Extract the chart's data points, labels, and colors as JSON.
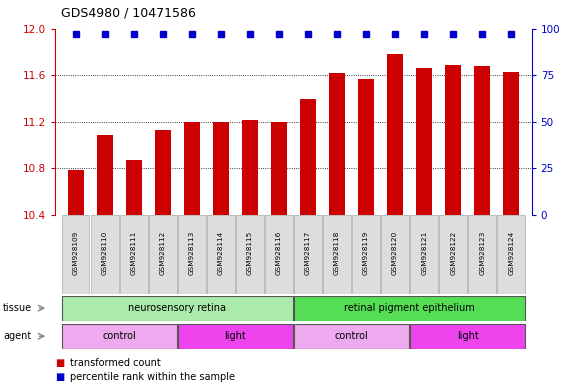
{
  "title": "GDS4980 / 10471586",
  "samples": [
    "GSM928109",
    "GSM928110",
    "GSM928111",
    "GSM928112",
    "GSM928113",
    "GSM928114",
    "GSM928115",
    "GSM928116",
    "GSM928117",
    "GSM928118",
    "GSM928119",
    "GSM928120",
    "GSM928121",
    "GSM928122",
    "GSM928123",
    "GSM928124"
  ],
  "bar_values": [
    10.79,
    11.09,
    10.87,
    11.13,
    11.2,
    11.2,
    11.22,
    11.2,
    11.4,
    11.62,
    11.57,
    11.78,
    11.66,
    11.69,
    11.68,
    11.63
  ],
  "percentile_values": [
    97,
    97,
    97,
    97,
    97,
    97,
    97,
    97,
    97,
    97,
    97,
    97,
    97,
    97,
    97,
    97
  ],
  "bar_color": "#cc0000",
  "percentile_color": "#0000cc",
  "ylim_left": [
    10.4,
    12.0
  ],
  "ylim_right": [
    0,
    100
  ],
  "yticks_left": [
    10.4,
    10.8,
    11.2,
    11.6,
    12.0
  ],
  "yticks_right": [
    0,
    25,
    50,
    75,
    100
  ],
  "tissue_groups": [
    {
      "label": "neurosensory retina",
      "start": 0,
      "end": 7,
      "color": "#aaeaaa"
    },
    {
      "label": "retinal pigment epithelium",
      "start": 8,
      "end": 15,
      "color": "#55dd55"
    }
  ],
  "agent_groups": [
    {
      "label": "control",
      "start": 0,
      "end": 3,
      "color": "#eeaaee"
    },
    {
      "label": "light",
      "start": 4,
      "end": 7,
      "color": "#ee44ee"
    },
    {
      "label": "control",
      "start": 8,
      "end": 11,
      "color": "#eeaaee"
    },
    {
      "label": "light",
      "start": 12,
      "end": 15,
      "color": "#ee44ee"
    }
  ],
  "background_color": "#ffffff",
  "grid_color": "#000000",
  "tick_label_color_left": "#cc0000",
  "tick_label_color_right": "#0000cc",
  "bar_width": 0.55,
  "ybaseline": 10.4,
  "label_box_color": "#dddddd",
  "label_box_edge": "#aaaaaa"
}
